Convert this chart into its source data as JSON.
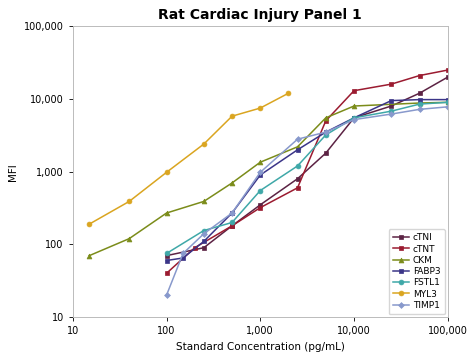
{
  "title": "Rat Cardiac Injury Panel 1",
  "xlabel": "Standard Concentration (pg/mL)",
  "ylabel": "MFI",
  "xlim": [
    10,
    100000
  ],
  "ylim": [
    10,
    100000
  ],
  "series": {
    "cTNI": {
      "x": [
        100,
        250,
        500,
        1000,
        2500,
        5000,
        10000,
        25000,
        50000,
        100000
      ],
      "y": [
        70,
        90,
        180,
        350,
        800,
        1800,
        5500,
        8000,
        12000,
        20000
      ],
      "color": "#5C2344",
      "marker": "s",
      "markersize": 3.5
    },
    "cTNT": {
      "x": [
        100,
        200,
        500,
        1000,
        2500,
        5000,
        10000,
        25000,
        50000,
        100000
      ],
      "y": [
        40,
        90,
        180,
        320,
        600,
        5000,
        13000,
        16000,
        21000,
        25000
      ],
      "color": "#9B1B30",
      "marker": "s",
      "markersize": 3.5
    },
    "CKM": {
      "x": [
        15,
        40,
        100,
        250,
        500,
        1000,
        2500,
        5000,
        10000,
        50000,
        100000
      ],
      "y": [
        70,
        120,
        270,
        390,
        700,
        1350,
        2200,
        5500,
        8000,
        8800,
        9000
      ],
      "color": "#7B8C1A",
      "marker": "^",
      "markersize": 3.5
    },
    "FABP3": {
      "x": [
        100,
        150,
        250,
        500,
        1000,
        2500,
        5000,
        10000,
        25000,
        50000,
        100000
      ],
      "y": [
        60,
        65,
        110,
        270,
        900,
        2000,
        3500,
        5500,
        9500,
        9800,
        9800
      ],
      "color": "#3B3588",
      "marker": "s",
      "markersize": 3.5
    },
    "FSTL1": {
      "x": [
        100,
        250,
        500,
        1000,
        2500,
        5000,
        10000,
        25000,
        50000,
        100000
      ],
      "y": [
        75,
        155,
        200,
        550,
        1200,
        3200,
        5500,
        6800,
        8500,
        9000
      ],
      "color": "#3FA8A8",
      "marker": "o",
      "markersize": 3.5
    },
    "MYL3": {
      "x": [
        15,
        40,
        100,
        250,
        500,
        1000,
        2000
      ],
      "y": [
        190,
        390,
        980,
        2400,
        5800,
        7500,
        12000
      ],
      "color": "#DAA520",
      "marker": "o",
      "markersize": 3.5
    },
    "TIMP1": {
      "x": [
        100,
        150,
        250,
        500,
        1000,
        2500,
        5000,
        10000,
        25000,
        50000,
        100000
      ],
      "y": [
        20,
        75,
        140,
        270,
        980,
        2800,
        3500,
        5200,
        6200,
        7200,
        7800
      ],
      "color": "#8899CC",
      "marker": "D",
      "markersize": 3.0
    }
  },
  "legend_order": [
    "cTNI",
    "cTNT",
    "CKM",
    "FABP3",
    "FSTL1",
    "MYL3",
    "TIMP1"
  ],
  "bg_color": "#FFFFFF",
  "plot_bg_color": "#FFFFFF",
  "title_fontsize": 10,
  "axis_label_fontsize": 7.5,
  "tick_fontsize": 7,
  "legend_fontsize": 6.5,
  "linewidth": 1.1
}
